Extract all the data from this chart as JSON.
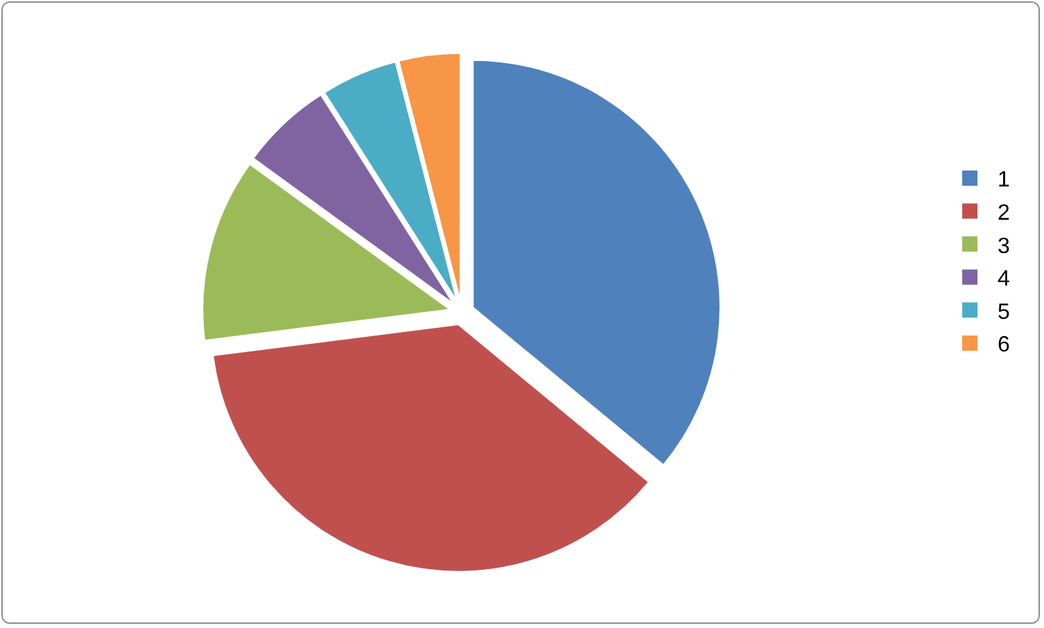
{
  "chart_data": {
    "type": "pie",
    "categories": [
      "1",
      "2",
      "3",
      "4",
      "5",
      "6"
    ],
    "values": [
      36,
      37,
      12,
      6,
      5,
      4
    ],
    "colors": [
      "#4f81bd",
      "#c0504d",
      "#9bbb59",
      "#8064a2",
      "#4bacc6",
      "#f79646"
    ],
    "legend": "right"
  }
}
